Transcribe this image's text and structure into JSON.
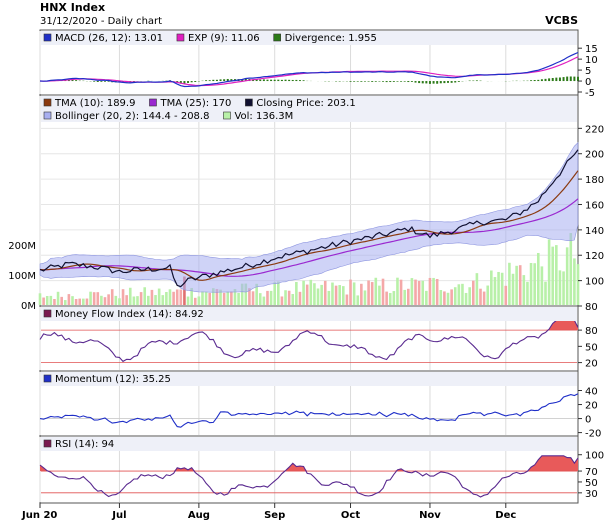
{
  "header": {
    "title": "HNX Index",
    "subtitle": "31/12/2020 - Daily chart",
    "brand": "VCBS"
  },
  "x_axis": {
    "months": [
      {
        "label": "Jun 20",
        "index": 0
      },
      {
        "label": "Jul",
        "index": 22
      },
      {
        "label": "Aug",
        "index": 44
      },
      {
        "label": "Sep",
        "index": 65
      },
      {
        "label": "Oct",
        "index": 86
      },
      {
        "label": "Nov",
        "index": 108
      },
      {
        "label": "Dec",
        "index": 129
      }
    ]
  },
  "chart_data": [
    {
      "type": "line",
      "panel": "macd",
      "legend": [
        {
          "label": "MACD (26, 12): 13.01",
          "color": "#1f2fc8"
        },
        {
          "label": "EXP (9): 11.06",
          "color": "#e020c0"
        },
        {
          "label": "Divergence: 1.955",
          "color": "#2c7a18"
        }
      ],
      "y_ticks": [
        15,
        10,
        5,
        0,
        -5
      ],
      "ylim": [
        -5,
        16
      ]
    },
    {
      "type": "line",
      "panel": "price",
      "legend": [
        {
          "label": "TMA (10): 189.9",
          "color": "#8b3a10"
        },
        {
          "label": "TMA (25): 170",
          "color": "#9a28d0"
        },
        {
          "label": "Closing Price: 203.1",
          "color": "#101030"
        },
        {
          "label": "Bollinger (20, 2): 144.4 - 208.8",
          "color": "#a8aff0"
        },
        {
          "label": "Vol: 136.3M",
          "color": "#b8f0a8"
        }
      ],
      "y_ticks": [
        220,
        200,
        180,
        160,
        140,
        120,
        100,
        80
      ],
      "ylim": [
        80,
        225
      ],
      "vol_ticks": [
        "200M",
        "100M",
        "0M"
      ],
      "vol_values": [
        200,
        100,
        0
      ],
      "vol_ylim": [
        0,
        200
      ]
    },
    {
      "type": "line",
      "panel": "mfi",
      "legend": [
        {
          "label": "Money Flow Index (14): 84.92",
          "color": "#7a1a50"
        }
      ],
      "y_ticks": [
        80,
        50,
        20
      ],
      "ylim": [
        10,
        95
      ],
      "ref_lines": [
        80,
        20
      ]
    },
    {
      "type": "line",
      "panel": "momentum",
      "legend": [
        {
          "label": "Momentum (12): 35.25",
          "color": "#1f2fc8"
        }
      ],
      "y_ticks": [
        40,
        20,
        0,
        -20
      ],
      "ylim": [
        -22,
        45
      ]
    },
    {
      "type": "line",
      "panel": "rsi",
      "legend": [
        {
          "label": "RSI (14): 94",
          "color": "#7a1a50"
        }
      ],
      "y_ticks": [
        100,
        70,
        50,
        30
      ],
      "ylim": [
        15,
        105
      ],
      "ref_lines": [
        70,
        30
      ]
    }
  ]
}
